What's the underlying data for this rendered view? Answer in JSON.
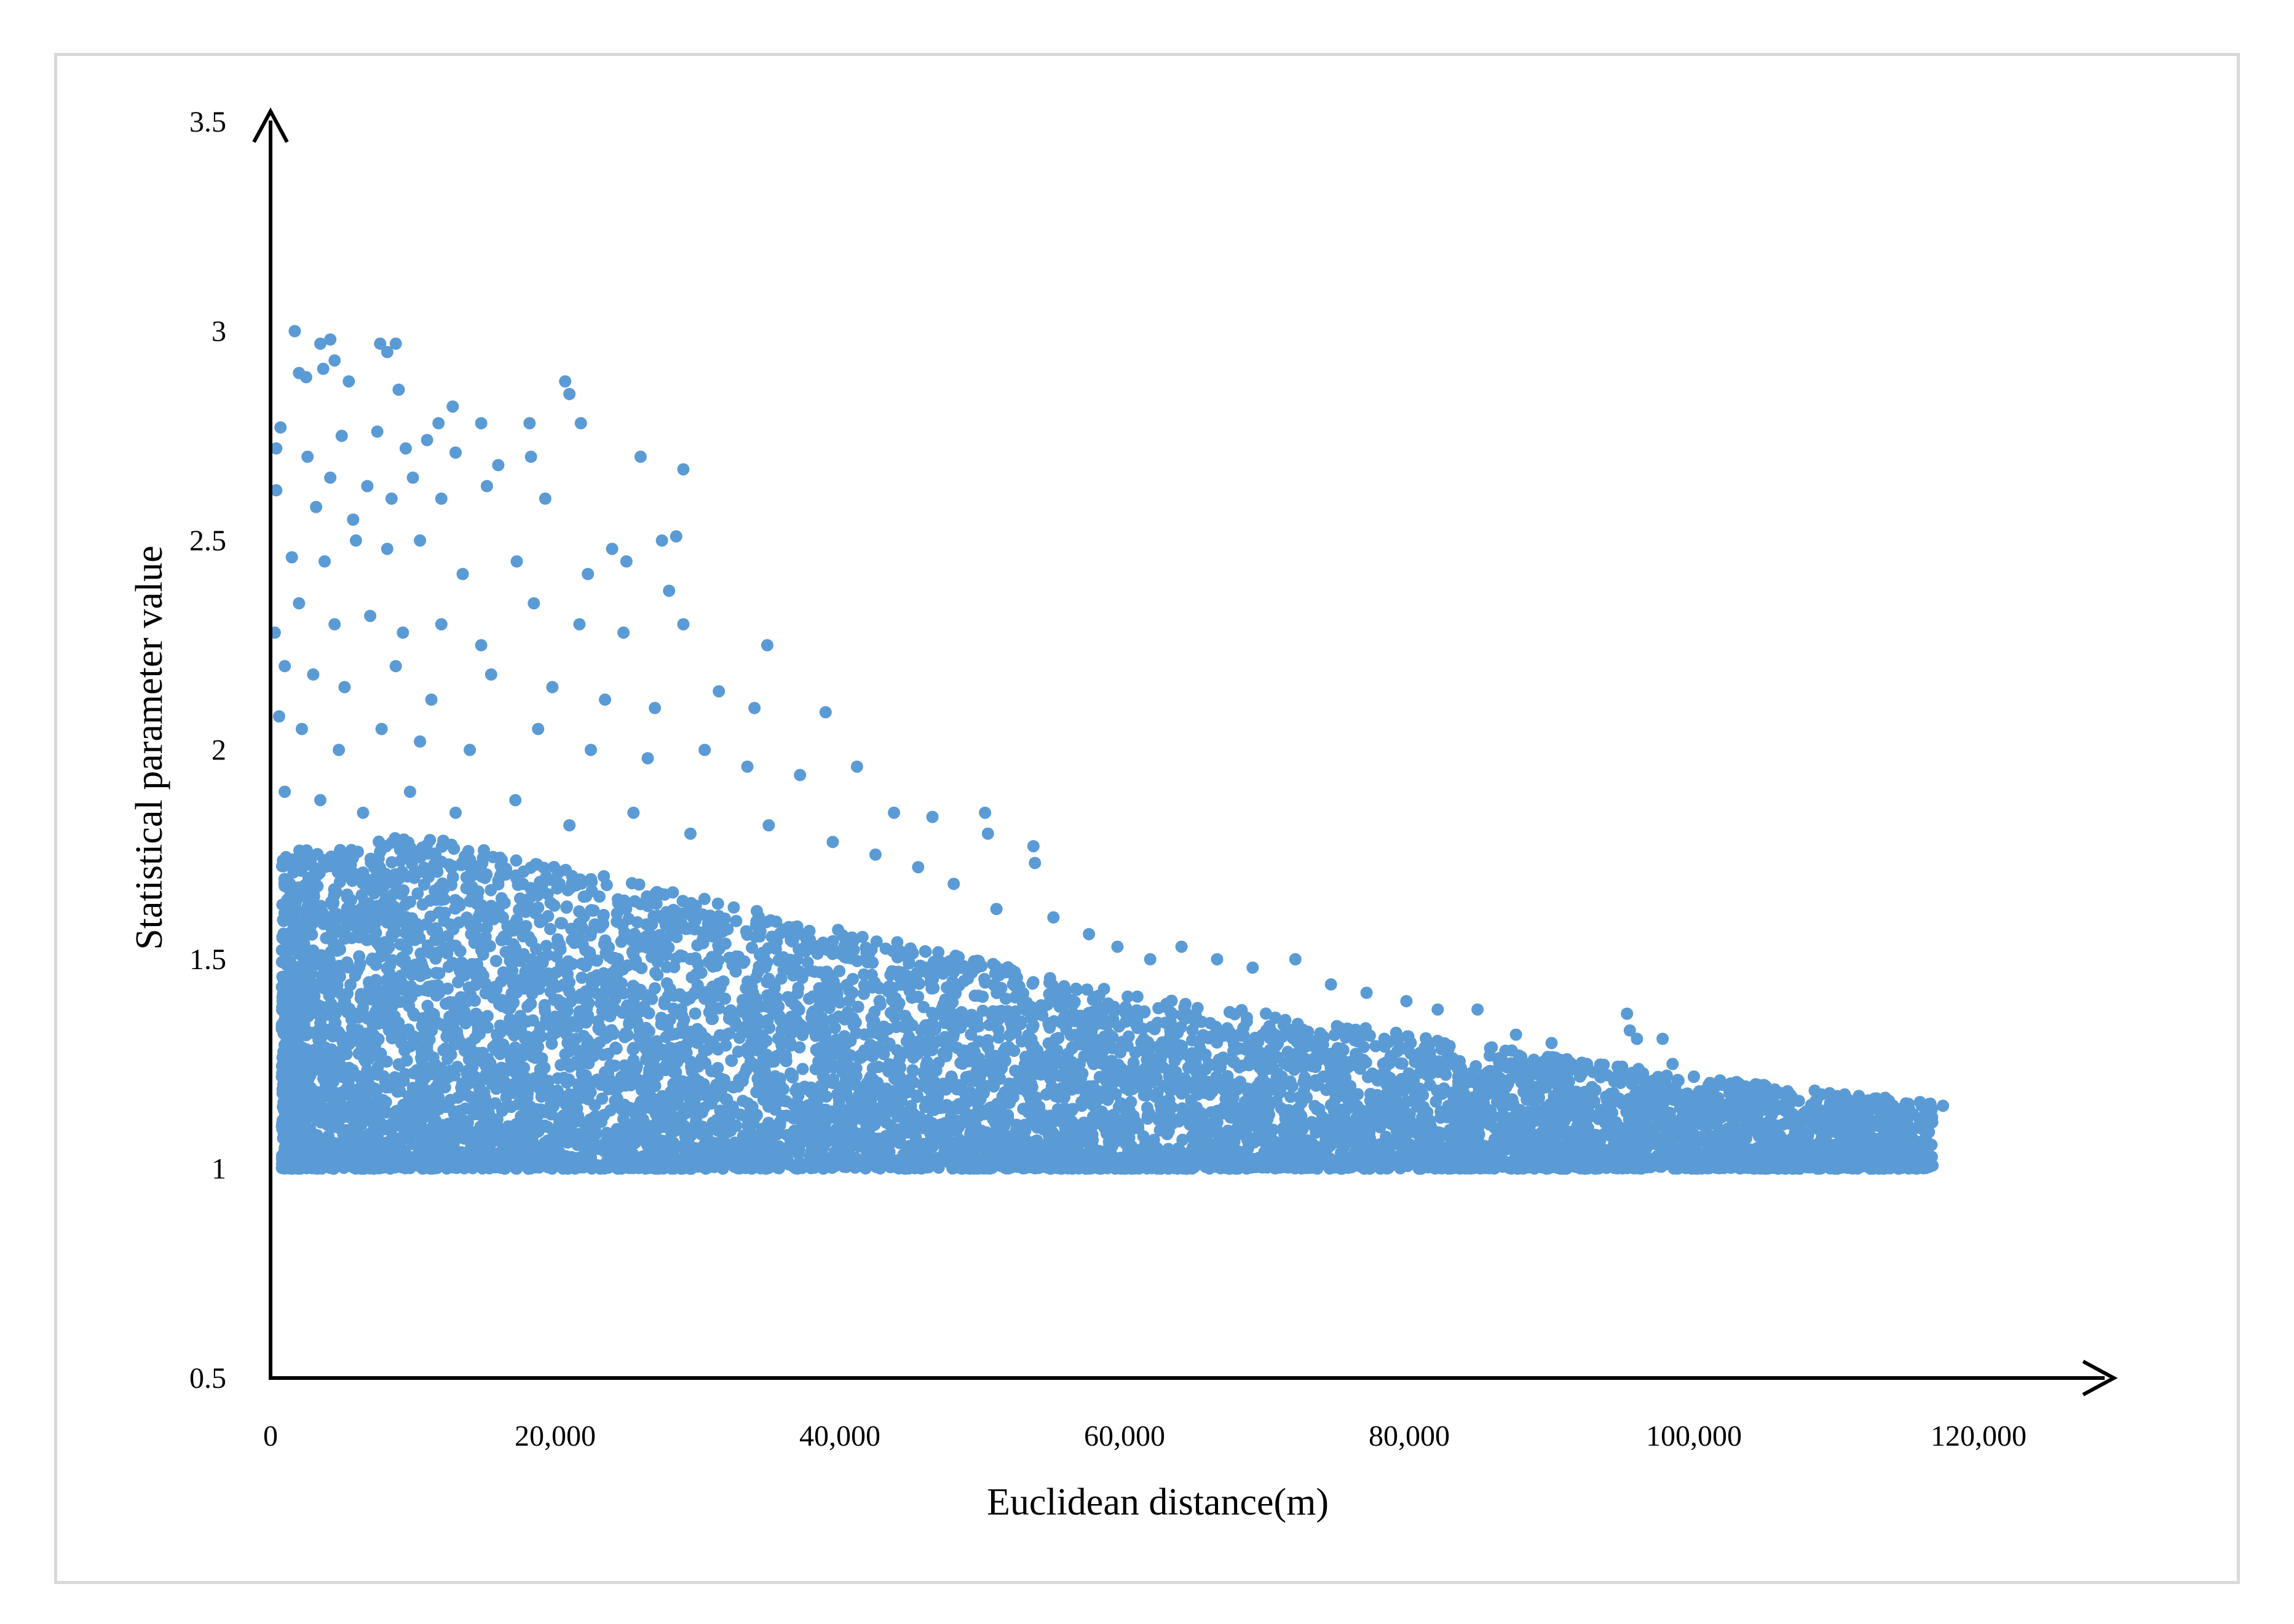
{
  "chart_data": {
    "type": "scatter",
    "title": "",
    "xlabel": "Euclidean distance(m)",
    "ylabel": "Statistical parameter value",
    "xlim": [
      0,
      120000
    ],
    "ylim": [
      0.5,
      3.5
    ],
    "x_ticks": [
      0,
      20000,
      40000,
      60000,
      80000,
      100000,
      120000
    ],
    "x_tick_labels": [
      "0",
      "20,000",
      "40,000",
      "60,000",
      "80,000",
      "100,000",
      "120,000"
    ],
    "y_ticks": [
      0.5,
      1,
      1.5,
      2,
      2.5,
      3,
      3.5
    ],
    "y_tick_labels": [
      "0.5",
      "1",
      "1.5",
      "2",
      "2.5",
      "3",
      "3.5"
    ],
    "grid": false,
    "legend": "none",
    "marker_color": "#5b9bd5",
    "series": [
      {
        "values_description_note": "",
        "points": [
          [
            1700,
            3.0
          ],
          [
            3500,
            2.97
          ],
          [
            4200,
            2.98
          ],
          [
            7700,
            2.97
          ],
          [
            8800,
            2.97
          ],
          [
            8200,
            2.95
          ],
          [
            2000,
            2.9
          ],
          [
            2500,
            2.89
          ],
          [
            3700,
            2.91
          ],
          [
            4500,
            2.93
          ],
          [
            5500,
            2.88
          ],
          [
            9000,
            2.86
          ],
          [
            20700,
            2.88
          ],
          [
            21000,
            2.85
          ],
          [
            12800,
            2.82
          ],
          [
            11800,
            2.78
          ],
          [
            14800,
            2.78
          ],
          [
            18200,
            2.78
          ],
          [
            21800,
            2.78
          ],
          [
            11000,
            2.74
          ],
          [
            5000,
            2.75
          ],
          [
            7500,
            2.76
          ],
          [
            9500,
            2.72
          ],
          [
            13000,
            2.71
          ],
          [
            400,
            2.72
          ],
          [
            700,
            2.77
          ],
          [
            2600,
            2.7
          ],
          [
            4200,
            2.65
          ],
          [
            6800,
            2.63
          ],
          [
            10000,
            2.65
          ],
          [
            16000,
            2.68
          ],
          [
            18300,
            2.7
          ],
          [
            26000,
            2.7
          ],
          [
            29000,
            2.67
          ],
          [
            400,
            2.62
          ],
          [
            3200,
            2.58
          ],
          [
            5800,
            2.55
          ],
          [
            8500,
            2.6
          ],
          [
            12000,
            2.6
          ],
          [
            15200,
            2.63
          ],
          [
            19300,
            2.6
          ],
          [
            24000,
            2.48
          ],
          [
            27500,
            2.5
          ],
          [
            28500,
            2.51
          ],
          [
            1500,
            2.46
          ],
          [
            3800,
            2.45
          ],
          [
            6000,
            2.5
          ],
          [
            8200,
            2.48
          ],
          [
            10500,
            2.5
          ],
          [
            13500,
            2.42
          ],
          [
            17300,
            2.45
          ],
          [
            22300,
            2.42
          ],
          [
            25000,
            2.45
          ],
          [
            28000,
            2.38
          ],
          [
            300,
            2.28
          ],
          [
            2000,
            2.35
          ],
          [
            4500,
            2.3
          ],
          [
            7000,
            2.32
          ],
          [
            9300,
            2.28
          ],
          [
            12000,
            2.3
          ],
          [
            14800,
            2.25
          ],
          [
            18500,
            2.35
          ],
          [
            21700,
            2.3
          ],
          [
            24800,
            2.28
          ],
          [
            29000,
            2.3
          ],
          [
            34900,
            2.25
          ],
          [
            1000,
            2.2
          ],
          [
            3000,
            2.18
          ],
          [
            5200,
            2.15
          ],
          [
            8800,
            2.2
          ],
          [
            11300,
            2.12
          ],
          [
            15500,
            2.18
          ],
          [
            19800,
            2.15
          ],
          [
            23500,
            2.12
          ],
          [
            27000,
            2.1
          ],
          [
            31500,
            2.14
          ],
          [
            34000,
            2.1
          ],
          [
            39000,
            2.09
          ],
          [
            600,
            2.08
          ],
          [
            2200,
            2.05
          ],
          [
            4800,
            2.0
          ],
          [
            7800,
            2.05
          ],
          [
            10500,
            2.02
          ],
          [
            14000,
            2.0
          ],
          [
            18800,
            2.05
          ],
          [
            22500,
            2.0
          ],
          [
            26500,
            1.98
          ],
          [
            30500,
            2.0
          ],
          [
            33500,
            1.96
          ],
          [
            37200,
            1.94
          ],
          [
            41200,
            1.96
          ],
          [
            43800,
            1.85
          ],
          [
            46500,
            1.84
          ],
          [
            50200,
            1.85
          ],
          [
            50400,
            1.8
          ],
          [
            53600,
            1.77
          ],
          [
            53700,
            1.73
          ],
          [
            1000,
            1.9
          ],
          [
            3500,
            1.88
          ],
          [
            6500,
            1.85
          ],
          [
            9800,
            1.9
          ],
          [
            13000,
            1.85
          ],
          [
            17200,
            1.88
          ],
          [
            21000,
            1.82
          ],
          [
            25500,
            1.85
          ],
          [
            29500,
            1.8
          ],
          [
            35000,
            1.82
          ],
          [
            39500,
            1.78
          ],
          [
            42500,
            1.75
          ],
          [
            45500,
            1.72
          ],
          [
            48000,
            1.68
          ],
          [
            51000,
            1.62
          ],
          [
            55000,
            1.6
          ],
          [
            57500,
            1.56
          ],
          [
            59500,
            1.53
          ],
          [
            61800,
            1.5
          ],
          [
            64000,
            1.53
          ],
          [
            66500,
            1.5
          ],
          [
            69000,
            1.48
          ],
          [
            72000,
            1.5
          ],
          [
            74500,
            1.44
          ],
          [
            77000,
            1.42
          ],
          [
            79800,
            1.4
          ],
          [
            82000,
            1.38
          ],
          [
            84800,
            1.38
          ],
          [
            87500,
            1.32
          ],
          [
            90000,
            1.3
          ],
          [
            92000,
            1.22
          ],
          [
            95300,
            1.37
          ],
          [
            95500,
            1.33
          ],
          [
            96000,
            1.31
          ],
          [
            97800,
            1.31
          ],
          [
            98500,
            1.25
          ],
          [
            100000,
            1.22
          ],
          [
            102500,
            1.18
          ],
          [
            104500,
            1.2
          ],
          [
            106000,
            1.15
          ],
          [
            108000,
            1.13
          ],
          [
            110000,
            1.15
          ],
          [
            112000,
            1.16
          ],
          [
            114000,
            1.15
          ],
          [
            115000,
            1.14
          ],
          [
            117500,
            1.15
          ],
          [
            113000,
            1.14
          ]
        ]
      }
    ]
  }
}
